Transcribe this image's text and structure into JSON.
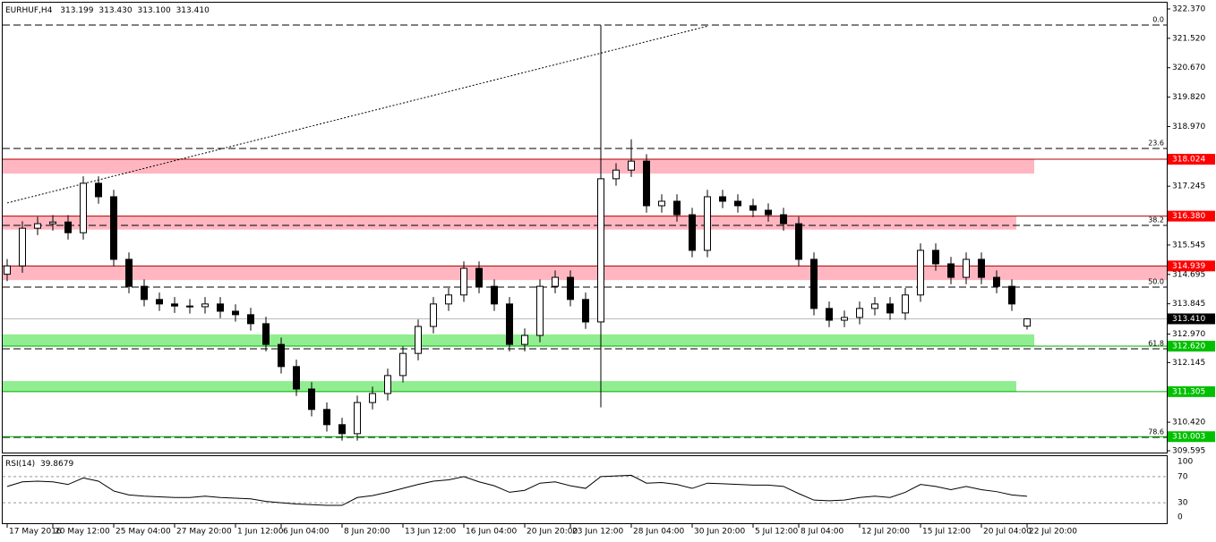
{
  "chart_data": {
    "type": "candlestick",
    "symbol": "EURHUF,H4",
    "ohlc_labels": [
      "313.199",
      "313.430",
      "313.100",
      "313.410"
    ],
    "categories": [
      "17 May 2016",
      null,
      null,
      "20 May 12:00",
      null,
      null,
      null,
      "25 May 04:00",
      null,
      null,
      null,
      "27 May 20:00",
      null,
      null,
      null,
      "1 Jun 12:00",
      null,
      null,
      "6 Jun 04:00",
      null,
      null,
      null,
      "8 Jun 20:00",
      null,
      null,
      null,
      "13 Jun 12:00",
      null,
      null,
      null,
      "16 Jun 04:00",
      null,
      null,
      null,
      "20 Jun 20:00",
      null,
      null,
      "23 Jun 12:00",
      null,
      null,
      null,
      "28 Jun 04:00",
      null,
      null,
      null,
      "30 Jun 20:00",
      null,
      null,
      null,
      "5 Jul 12:00",
      null,
      null,
      "8 Jul 04:00",
      null,
      null,
      null,
      "12 Jul 20:00",
      null,
      null,
      null,
      "15 Jul 12:00",
      null,
      null,
      null,
      "20 Jul 04:00",
      null,
      null,
      "22 Jul 20:00"
    ],
    "open": [
      314.7,
      314.94,
      316.03,
      316.16,
      316.21,
      315.9,
      317.33,
      316.94,
      315.13,
      314.35,
      313.97,
      313.84,
      313.78,
      313.76,
      313.84,
      313.63,
      313.53,
      313.27,
      312.67,
      312.03,
      311.38,
      310.79,
      310.35,
      310.09,
      310.99,
      311.25,
      311.77,
      312.41,
      313.19,
      313.84,
      314.1,
      314.87,
      314.35,
      313.84,
      312.67,
      312.93,
      314.35,
      314.61,
      313.97,
      313.32,
      317.46,
      317.71,
      317.97,
      316.68,
      316.81,
      316.42,
      315.39,
      316.94,
      316.81,
      316.68,
      316.55,
      316.42,
      316.16,
      315.13,
      313.71,
      313.37,
      313.45,
      313.71,
      313.84,
      313.58,
      314.1,
      315.39,
      315.0,
      314.61,
      315.13,
      314.61,
      314.35,
      313.199
    ],
    "high": [
      315.14,
      316.23,
      316.36,
      316.41,
      316.41,
      317.53,
      317.53,
      317.14,
      315.33,
      314.55,
      314.17,
      314.04,
      313.98,
      314.04,
      314.04,
      313.83,
      313.73,
      313.47,
      312.87,
      312.23,
      311.58,
      310.99,
      310.55,
      311.19,
      311.45,
      311.97,
      312.61,
      313.39,
      314.04,
      314.3,
      315.07,
      315.07,
      314.55,
      314.04,
      313.13,
      314.55,
      314.81,
      314.81,
      314.17,
      321.9,
      317.91,
      318.6,
      318.17,
      317.01,
      317.01,
      316.62,
      317.14,
      317.14,
      317.01,
      316.88,
      316.75,
      316.62,
      316.36,
      315.33,
      313.91,
      313.65,
      313.91,
      314.04,
      314.04,
      314.3,
      315.59,
      315.59,
      315.2,
      315.33,
      315.33,
      314.81,
      314.55,
      313.43
    ],
    "low": [
      314.5,
      314.74,
      315.83,
      315.96,
      315.7,
      315.7,
      316.74,
      314.93,
      314.15,
      313.77,
      313.64,
      313.58,
      313.56,
      313.56,
      313.43,
      313.33,
      313.07,
      312.47,
      311.83,
      311.18,
      310.59,
      310.15,
      309.89,
      309.89,
      310.79,
      311.05,
      311.57,
      312.21,
      312.99,
      313.64,
      313.9,
      314.15,
      313.64,
      312.47,
      312.47,
      312.73,
      314.15,
      313.77,
      313.12,
      310.85,
      317.26,
      317.51,
      316.48,
      316.48,
      316.22,
      315.19,
      315.19,
      316.61,
      316.48,
      316.35,
      316.22,
      315.96,
      314.93,
      313.51,
      313.17,
      313.17,
      313.25,
      313.51,
      313.38,
      313.38,
      313.9,
      314.8,
      314.41,
      314.41,
      314.41,
      314.15,
      313.64,
      313.1
    ],
    "close": [
      314.94,
      316.03,
      316.16,
      316.21,
      315.9,
      317.33,
      316.94,
      315.13,
      314.35,
      313.97,
      313.84,
      313.78,
      313.76,
      313.84,
      313.63,
      313.53,
      313.27,
      312.67,
      312.03,
      311.38,
      310.79,
      310.35,
      310.09,
      310.99,
      311.25,
      311.77,
      312.41,
      313.19,
      313.84,
      314.1,
      314.87,
      314.35,
      313.84,
      312.67,
      312.93,
      314.35,
      314.61,
      313.97,
      313.32,
      317.46,
      317.71,
      317.97,
      316.68,
      316.81,
      316.42,
      315.39,
      316.94,
      316.81,
      316.68,
      316.55,
      316.42,
      316.16,
      315.13,
      313.71,
      313.37,
      313.45,
      313.71,
      313.84,
      313.58,
      314.1,
      315.39,
      315.0,
      314.61,
      315.13,
      314.61,
      314.35,
      313.84,
      313.41
    ],
    "ylim": [
      309.595,
      322.37
    ],
    "yticks": [
      {
        "value": 322.37,
        "label": "322.370"
      },
      {
        "value": 321.52,
        "label": "321.520"
      },
      {
        "value": 320.67,
        "label": "320.670"
      },
      {
        "value": 319.82,
        "label": "319.820"
      },
      {
        "value": 318.97,
        "label": "318.970"
      },
      317.245,
      315.545,
      314.695,
      313.845,
      {
        "value": 312.97,
        "label": "312.970"
      },
      312.145,
      {
        "value": 310.42,
        "label": "310.420"
      },
      309.595
    ],
    "levels": [
      {
        "price": 318.024,
        "zone_edge": 317.61,
        "color": "#ff0000"
      },
      {
        "price": {
          "value": 316.38,
          "label": "316.380"
        },
        "zone_edge": 315.99,
        "color": "#ff0000"
      },
      {
        "price": 314.939,
        "zone_edge": 314.53,
        "color": "#ff0000"
      },
      {
        "price": {
          "value": 313.41,
          "label": "313.410"
        },
        "color": "#000000"
      },
      {
        "price": {
          "value": 312.62,
          "label": "312.620"
        },
        "zone_edge": 312.96,
        "color": "#00c000"
      },
      {
        "price": 311.305,
        "zone_edge": 311.61,
        "color": "#00c000"
      },
      {
        "price": 310.003,
        "color": "#00c000"
      }
    ],
    "fib": [
      {
        "label": "0.0",
        "price": 321.905
      },
      {
        "label": "23.6",
        "price": 318.336
      },
      {
        "label": "38.2",
        "price": 316.112
      },
      {
        "label": "50.0",
        "price": 314.328
      },
      {
        "label": "61.8",
        "price": 312.543
      },
      {
        "label": "78.6",
        "price": 309.983
      }
    ],
    "trendline": {
      "x": [
        0,
        46
      ],
      "y": [
        316.76,
        321.87
      ]
    },
    "rsi": {
      "title": "RSI(14)",
      "ylim": [
        0,
        100
      ],
      "yticks": [
        100,
        70,
        30,
        0
      ],
      "values": [
        55,
        62,
        63,
        62,
        58,
        68,
        63,
        48,
        42,
        40,
        39,
        38,
        38,
        40,
        38,
        37,
        36,
        32,
        30,
        28,
        27,
        26,
        26,
        38,
        41,
        46,
        52,
        58,
        63,
        65,
        70,
        62,
        56,
        46,
        49,
        60,
        62,
        56,
        52,
        70,
        71,
        72,
        60,
        61,
        58,
        52,
        60,
        59,
        58,
        57,
        57,
        55,
        44,
        34,
        33,
        34,
        38,
        40,
        38,
        46,
        58,
        55,
        50,
        55,
        50,
        47,
        42,
        39.8679
      ]
    }
  }
}
